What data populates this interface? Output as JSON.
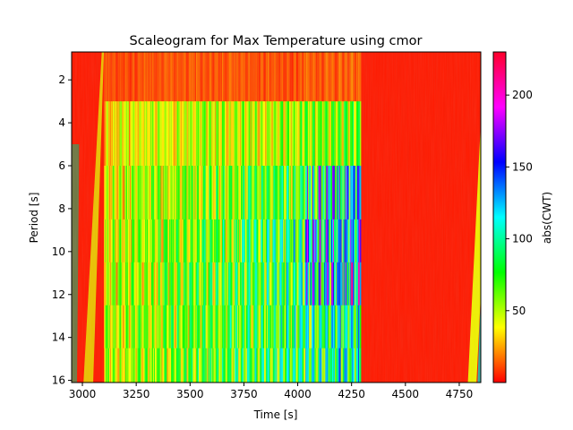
{
  "chart_data": {
    "type": "heatmap",
    "title": "Scaleogram for Max Temperature using cmor",
    "xlabel": "Time [s]",
    "ylabel": "Period [s]",
    "xlim": [
      2950,
      4850
    ],
    "ylim": [
      0.7,
      16.1
    ],
    "y_inverted": true,
    "x_ticks": [
      3000,
      3250,
      3500,
      3750,
      4000,
      4250,
      4500,
      4750
    ],
    "y_ticks": [
      2,
      4,
      6,
      8,
      10,
      12,
      14,
      16
    ],
    "colormap": "gist_rainbow_r",
    "colorbar": {
      "label": "abs(CWT)",
      "range": [
        0,
        230
      ],
      "ticks": [
        50,
        100,
        150,
        200
      ],
      "stops": [
        "#ff0000",
        "#ffff00",
        "#00ff00",
        "#00ffff",
        "#0000ff",
        "#ff00ff",
        "#ff0029"
      ]
    },
    "regions": [
      {
        "x": [
          2950,
          3100
        ],
        "description": "edge-effect cone (low values), ramp to yellow near x=3020-3100"
      },
      {
        "x": [
          3100,
          4290
        ],
        "magnitude": [
          10,
          180
        ],
        "peak_x": 4200,
        "peak_y": [
          6,
          12
        ]
      },
      {
        "x": [
          4290,
          4780
        ],
        "magnitude": [
          0,
          10
        ]
      },
      {
        "x": [
          4780,
          4850
        ],
        "description": "edge-effect cone, yellow-green"
      }
    ]
  }
}
